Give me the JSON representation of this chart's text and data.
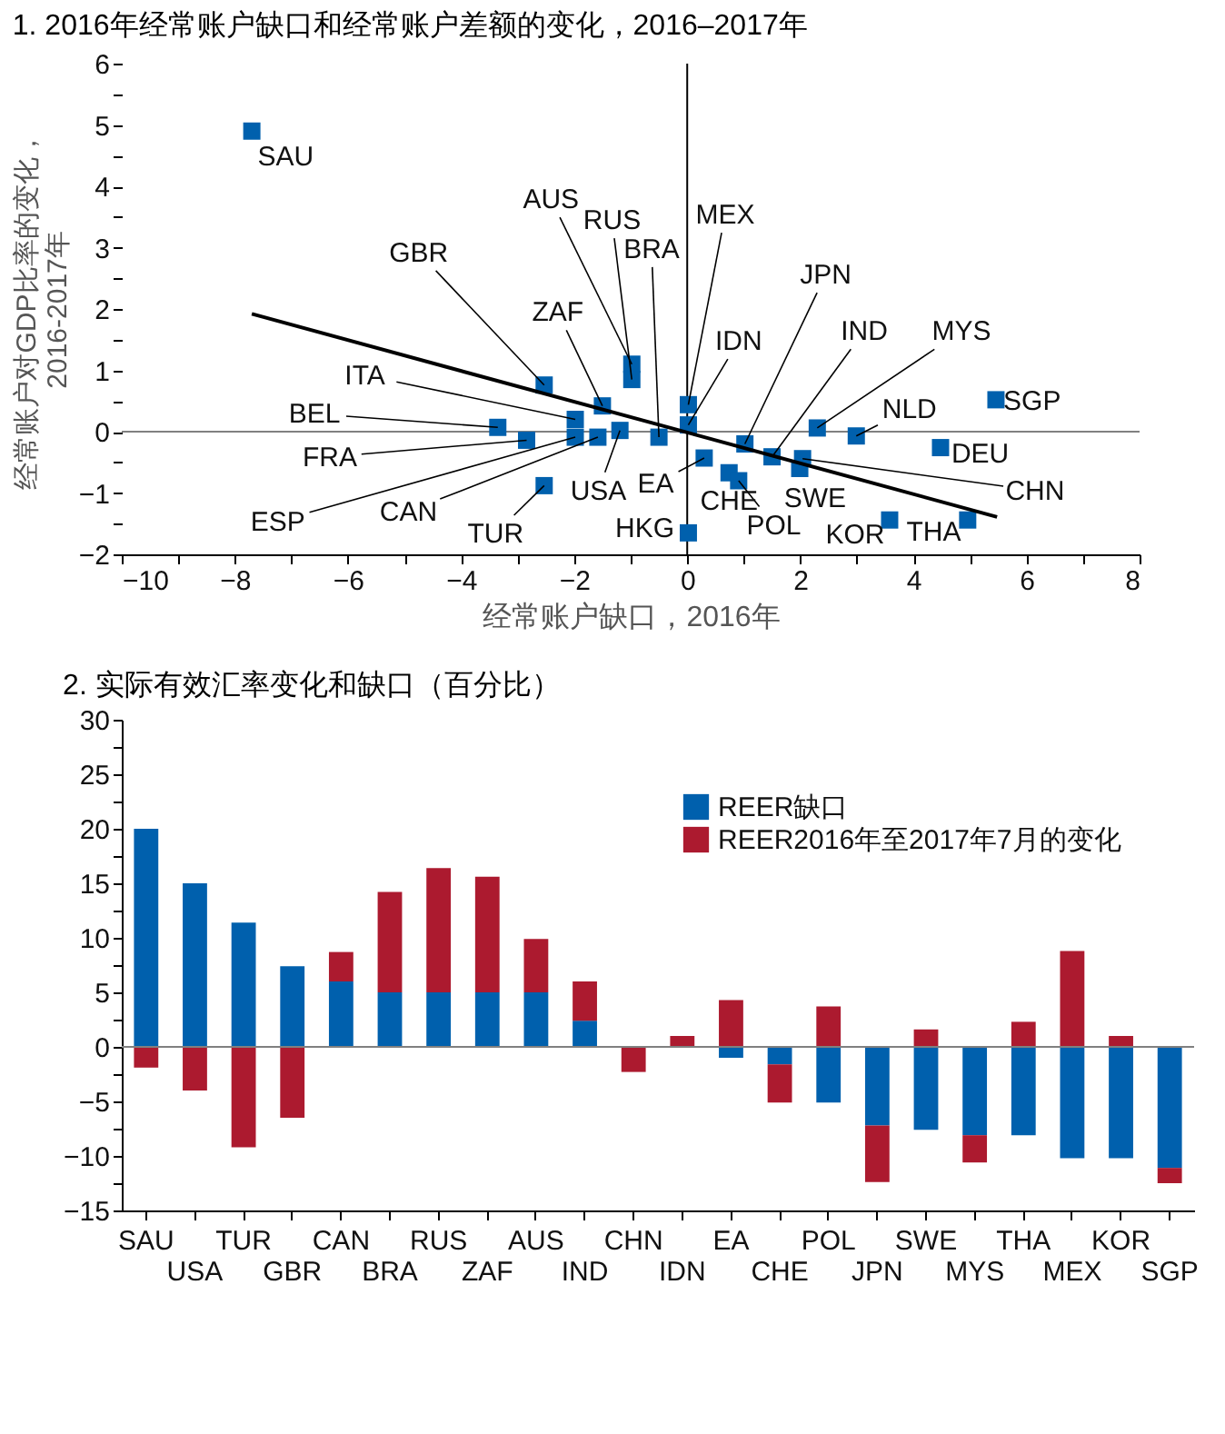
{
  "chart_data": [
    {
      "type": "scatter",
      "title": "1. 2016年经常账户缺口和经常账户差额的变化，2016–2017年",
      "xlabel": "经常账户缺口，2016年",
      "ylabel": "经常账户对GDP比率的变化，2016-2017年",
      "series": [
        {
          "type": "scatter",
          "marker": "square",
          "color": "#0060ad",
          "x": [
            -7.7,
            -2.53,
            -3.35,
            -2.84,
            -2.53,
            -1.98,
            -1.98,
            -1.58,
            -1.19,
            -1.5,
            -0.98,
            -0.98,
            -0.5,
            0.02,
            0.02,
            0.3,
            0.74,
            0.91,
            1.02,
            1.5,
            1.99,
            2.04,
            2.3,
            2.99,
            5.46,
            4.48,
            0.02,
            3.58,
            4.96
          ],
          "values": [
            4.9,
            0.76,
            0.07,
            -0.14,
            -0.88,
            0.2,
            -0.09,
            -0.09,
            0.02,
            0.42,
            1.1,
            0.85,
            -0.09,
            0.44,
            0.11,
            -0.43,
            -0.67,
            -0.8,
            -0.2,
            -0.41,
            -0.6,
            -0.44,
            0.06,
            -0.07,
            0.52,
            -0.26,
            -1.65,
            -1.44,
            -1.44
          ]
        },
        {
          "type": "line",
          "color": "#000000",
          "x": [
            -7.7,
            5.48
          ],
          "values": [
            1.92,
            -1.39
          ]
        }
      ],
      "annotations": [
        {
          "text": "SAU",
          "x": -7.7,
          "y": 4.9
        },
        {
          "text": "GBR",
          "x": -2.53,
          "y": 0.76
        },
        {
          "text": "BEL",
          "x": -3.35,
          "y": 0.07
        },
        {
          "text": "FRA",
          "x": -2.84,
          "y": -0.14
        },
        {
          "text": "TUR",
          "x": -2.53,
          "y": -0.88
        },
        {
          "text": "ITA",
          "x": -1.98,
          "y": 0.2
        },
        {
          "text": "ESP",
          "x": -1.98,
          "y": -0.09
        },
        {
          "text": "CAN",
          "x": -1.58,
          "y": -0.09
        },
        {
          "text": "USA",
          "x": -1.19,
          "y": 0.02
        },
        {
          "text": "ZAF",
          "x": -1.5,
          "y": 0.42
        },
        {
          "text": "AUS",
          "x": -0.98,
          "y": 1.1
        },
        {
          "text": "RUS",
          "x": -0.98,
          "y": 0.85
        },
        {
          "text": "BRA",
          "x": -0.5,
          "y": -0.09
        },
        {
          "text": "MEX",
          "x": 0.02,
          "y": 0.44
        },
        {
          "text": "IDN",
          "x": 0.02,
          "y": 0.11
        },
        {
          "text": "EA",
          "x": 0.3,
          "y": -0.43
        },
        {
          "text": "CHE",
          "x": 0.74,
          "y": -0.67
        },
        {
          "text": "POL",
          "x": 0.91,
          "y": -0.8
        },
        {
          "text": "JPN",
          "x": 1.02,
          "y": -0.2
        },
        {
          "text": "IND",
          "x": 1.5,
          "y": -0.41
        },
        {
          "text": "SWE",
          "x": 1.99,
          "y": -0.6
        },
        {
          "text": "CHN",
          "x": 2.04,
          "y": -0.44
        },
        {
          "text": "MYS",
          "x": 2.3,
          "y": 0.06
        },
        {
          "text": "NLD",
          "x": 2.99,
          "y": -0.07
        },
        {
          "text": "SGP",
          "x": 5.46,
          "y": 0.52
        },
        {
          "text": "DEU",
          "x": 4.48,
          "y": -0.26
        },
        {
          "text": "HKG",
          "x": 0.02,
          "y": -1.65
        },
        {
          "text": "KOR",
          "x": 3.58,
          "y": -1.44
        },
        {
          "text": "THA",
          "x": 4.96,
          "y": -1.44
        }
      ],
      "ref_lines": [
        {
          "axis": "y",
          "value": 0,
          "color": "#808080"
        },
        {
          "axis": "x",
          "value": 0,
          "color": "#000000"
        }
      ],
      "xlim": [
        -10,
        8
      ],
      "xticks": [
        -10,
        {
          "value": -9,
          "label": null
        },
        -8,
        {
          "value": -7,
          "label": null
        },
        -6,
        {
          "value": -5,
          "label": null
        },
        -4,
        {
          "value": -3,
          "label": null
        },
        -2,
        {
          "value": -1,
          "label": null
        },
        0,
        {
          "value": 1,
          "label": null
        },
        2,
        {
          "value": 3,
          "label": null
        },
        4,
        {
          "value": 5,
          "label": null
        },
        6,
        {
          "value": 7,
          "label": null
        },
        8
      ],
      "ylim": [
        -2,
        6
      ],
      "yticks": [
        -2,
        {
          "value": -1.5,
          "label": null
        },
        -1,
        {
          "value": -0.5,
          "label": null
        },
        0,
        {
          "value": 0.5,
          "label": null
        },
        1,
        {
          "value": 1.5,
          "label": null
        },
        2,
        {
          "value": 2.5,
          "label": null
        },
        3,
        {
          "value": 3.5,
          "label": null
        },
        4,
        {
          "value": 4.5,
          "label": null
        },
        5,
        {
          "value": 5.5,
          "label": null
        },
        6
      ]
    },
    {
      "type": "bar",
      "title": "2. 实际有效汇率变化和缺口（百分比）",
      "stacked": true,
      "legend": "top right",
      "categories": [
        "SAU",
        "USA",
        "TUR",
        "GBR",
        "CAN",
        "BRA",
        "RUS",
        "ZAF",
        "AUS",
        "IND",
        "CHN",
        "IDN",
        "EA",
        "CHE",
        "POL",
        "JPN",
        "SWE",
        "MYS",
        "THA",
        "MEX",
        "KOR",
        "SGP"
      ],
      "series": [
        {
          "name": "REER缺口",
          "color": "#0060ad",
          "values": [
            20.0,
            15.0,
            11.4,
            7.4,
            6.0,
            5.0,
            5.0,
            5.0,
            5.0,
            2.4,
            0,
            0,
            -1.0,
            -1.6,
            -5.1,
            -7.2,
            -7.6,
            -8.1,
            -8.1,
            -10.2,
            -10.2,
            -11.1
          ]
        },
        {
          "name": "REER2016年至2017年7月的变化",
          "color": "#ac1a2f",
          "values": [
            -1.9,
            -4.0,
            -9.2,
            -6.5,
            2.7,
            9.2,
            11.4,
            10.6,
            4.9,
            3.6,
            -2.3,
            1.0,
            4.3,
            -3.5,
            3.7,
            -5.2,
            1.6,
            -2.5,
            2.3,
            8.8,
            1.0,
            -1.4
          ]
        }
      ],
      "ref_lines": [
        {
          "axis": "y",
          "value": 0,
          "color": "#808080"
        }
      ],
      "ylim": [
        -15,
        30
      ],
      "yticks": [
        -15,
        {
          "value": -12.5,
          "label": null
        },
        -10,
        {
          "value": -7.5,
          "label": null
        },
        -5,
        {
          "value": -2.5,
          "label": null
        },
        0,
        {
          "value": 2.5,
          "label": null
        },
        5,
        {
          "value": 7.5,
          "label": null
        },
        10,
        {
          "value": 12.5,
          "label": null
        },
        15,
        {
          "value": 17.5,
          "label": null
        },
        20,
        {
          "value": 22.5,
          "label": null
        },
        25,
        {
          "value": 27.5,
          "label": null
        },
        30
      ]
    }
  ]
}
